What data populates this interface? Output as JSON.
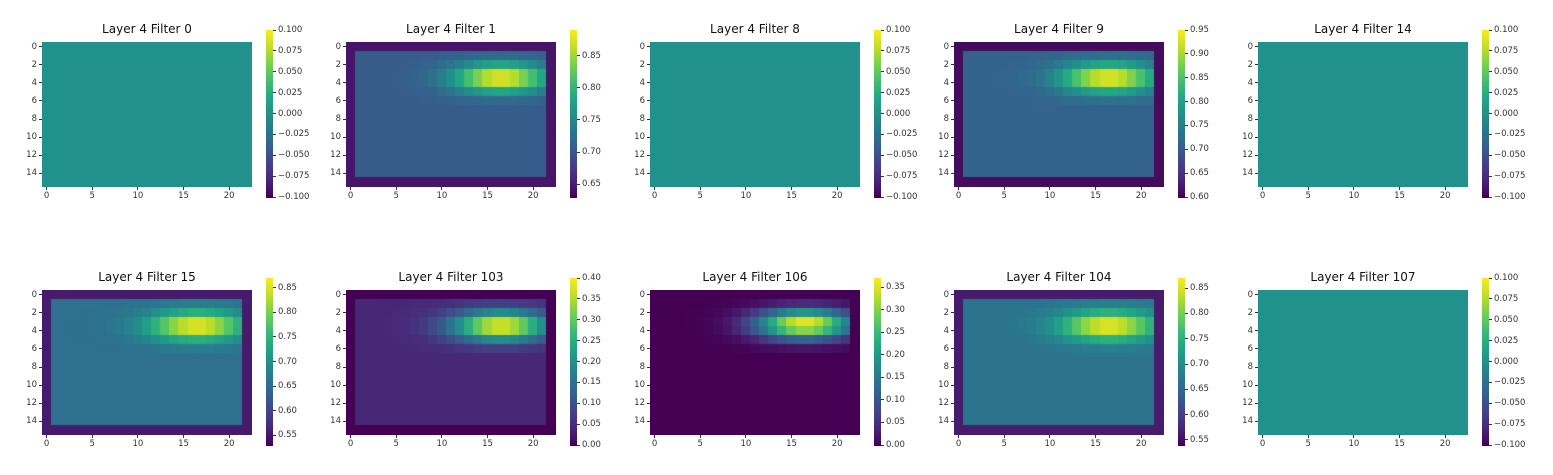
{
  "figure": {
    "background": "#ffffff"
  },
  "colormap": "viridis",
  "chart_data": [
    {
      "type": "heatmap",
      "title": "Layer 4 Filter 0",
      "rows": 16,
      "cols": 23,
      "xticks": [
        "0",
        "5",
        "10",
        "15",
        "20"
      ],
      "yticks": [
        "0",
        "2",
        "4",
        "6",
        "8",
        "10",
        "12",
        "14"
      ],
      "colorbar": {
        "min": -0.1,
        "max": 0.1,
        "ticks": [
          "0.100",
          "0.075",
          "0.050",
          "0.025",
          "0.000",
          "−0.025",
          "−0.050",
          "−0.075",
          "−0.100"
        ]
      },
      "uniform": 0.0
    },
    {
      "type": "heatmap",
      "title": "Layer 4 Filter 1",
      "rows": 16,
      "cols": 23,
      "xticks": [
        "0",
        "5",
        "10",
        "15",
        "20"
      ],
      "yticks": [
        "0",
        "2",
        "4",
        "6",
        "8",
        "10",
        "12",
        "14"
      ],
      "colorbar": {
        "min": 0.63,
        "max": 0.89,
        "ticks": [
          "0.85",
          "0.80",
          "0.75",
          "0.70",
          "0.65"
        ]
      },
      "pattern": {
        "border": 0.645,
        "interior": 0.705,
        "peak": 0.89,
        "peak_row": 3.5,
        "peak_col": 16.5
      }
    },
    {
      "type": "heatmap",
      "title": "Layer 4 Filter 8",
      "rows": 16,
      "cols": 23,
      "xticks": [
        "0",
        "5",
        "10",
        "15",
        "20"
      ],
      "yticks": [
        "0",
        "2",
        "4",
        "6",
        "8",
        "10",
        "12",
        "14"
      ],
      "colorbar": {
        "min": -0.1,
        "max": 0.1,
        "ticks": [
          "0.100",
          "0.075",
          "0.050",
          "0.025",
          "0.000",
          "−0.025",
          "−0.050",
          "−0.075",
          "−0.100"
        ]
      },
      "uniform": 0.0
    },
    {
      "type": "heatmap",
      "title": "Layer 4 Filter 9",
      "rows": 16,
      "cols": 23,
      "xticks": [
        "0",
        "5",
        "10",
        "15",
        "20"
      ],
      "yticks": [
        "0",
        "2",
        "4",
        "6",
        "8",
        "10",
        "12",
        "14"
      ],
      "colorbar": {
        "min": 0.6,
        "max": 0.95,
        "ticks": [
          "0.95",
          "0.90",
          "0.85",
          "0.80",
          "0.75",
          "0.70",
          "0.65",
          "0.60"
        ]
      },
      "pattern": {
        "border": 0.61,
        "interior": 0.71,
        "peak": 0.95,
        "peak_row": 3.5,
        "peak_col": 16.5
      }
    },
    {
      "type": "heatmap",
      "title": "Layer 4 Filter 14",
      "rows": 16,
      "cols": 23,
      "xticks": [
        "0",
        "5",
        "10",
        "15",
        "20"
      ],
      "yticks": [
        "0",
        "2",
        "4",
        "6",
        "8",
        "10",
        "12",
        "14"
      ],
      "colorbar": {
        "min": -0.1,
        "max": 0.1,
        "ticks": [
          "0.100",
          "0.075",
          "0.050",
          "0.025",
          "0.000",
          "−0.025",
          "−0.050",
          "−0.075",
          "−0.100"
        ]
      },
      "uniform": 0.0
    },
    {
      "type": "heatmap",
      "title": "Layer 4 Filter 15",
      "rows": 16,
      "cols": 23,
      "xticks": [
        "0",
        "5",
        "10",
        "15",
        "20"
      ],
      "yticks": [
        "0",
        "2",
        "4",
        "6",
        "8",
        "10",
        "12",
        "14"
      ],
      "colorbar": {
        "min": 0.53,
        "max": 0.87,
        "ticks": [
          "0.85",
          "0.80",
          "0.75",
          "0.70",
          "0.65",
          "0.60",
          "0.55"
        ]
      },
      "pattern": {
        "border": 0.555,
        "interior": 0.655,
        "peak": 0.87,
        "peak_row": 3.5,
        "peak_col": 16.5
      }
    },
    {
      "type": "heatmap",
      "title": "Layer 4 Filter 103",
      "rows": 16,
      "cols": 23,
      "xticks": [
        "0",
        "5",
        "10",
        "15",
        "20"
      ],
      "yticks": [
        "0",
        "2",
        "4",
        "6",
        "8",
        "10",
        "12",
        "14"
      ],
      "colorbar": {
        "min": 0.0,
        "max": 0.4,
        "ticks": [
          "0.40",
          "0.35",
          "0.30",
          "0.25",
          "0.20",
          "0.15",
          "0.10",
          "0.05",
          "0.00"
        ]
      },
      "pattern": {
        "border": 0.0,
        "interior": 0.045,
        "peak": 0.4,
        "peak_row": 3.5,
        "peak_col": 16.5
      }
    },
    {
      "type": "heatmap",
      "title": "Layer 4 Filter 106",
      "rows": 16,
      "cols": 23,
      "xticks": [
        "0",
        "5",
        "10",
        "15",
        "20"
      ],
      "yticks": [
        "0",
        "2",
        "4",
        "6",
        "8",
        "10",
        "12",
        "14"
      ],
      "colorbar": {
        "min": 0.0,
        "max": 0.37,
        "ticks": [
          "0.35",
          "0.30",
          "0.25",
          "0.20",
          "0.15",
          "0.10",
          "0.05",
          "0.00"
        ]
      },
      "pattern": {
        "border": 0.0,
        "interior": 0.0,
        "peak": 0.37,
        "peak_row": 3.3,
        "peak_col": 16.5
      }
    },
    {
      "type": "heatmap",
      "title": "Layer 4 Filter 104",
      "rows": 16,
      "cols": 23,
      "xticks": [
        "0",
        "5",
        "10",
        "15",
        "20"
      ],
      "yticks": [
        "0",
        "2",
        "4",
        "6",
        "8",
        "10",
        "12",
        "14"
      ],
      "colorbar": {
        "min": 0.54,
        "max": 0.87,
        "ticks": [
          "0.85",
          "0.80",
          "0.75",
          "0.70",
          "0.65",
          "0.60",
          "0.55"
        ]
      },
      "pattern": {
        "border": 0.565,
        "interior": 0.665,
        "peak": 0.87,
        "peak_row": 3.5,
        "peak_col": 16.5
      }
    },
    {
      "type": "heatmap",
      "title": "Layer 4 Filter 107",
      "rows": 16,
      "cols": 23,
      "xticks": [
        "0",
        "5",
        "10",
        "15",
        "20"
      ],
      "yticks": [
        "0",
        "2",
        "4",
        "6",
        "8",
        "10",
        "12",
        "14"
      ],
      "colorbar": {
        "min": -0.1,
        "max": 0.1,
        "ticks": [
          "0.100",
          "0.075",
          "0.050",
          "0.025",
          "0.000",
          "−0.025",
          "−0.050",
          "−0.075",
          "−0.100"
        ]
      },
      "uniform": 0.0
    }
  ]
}
